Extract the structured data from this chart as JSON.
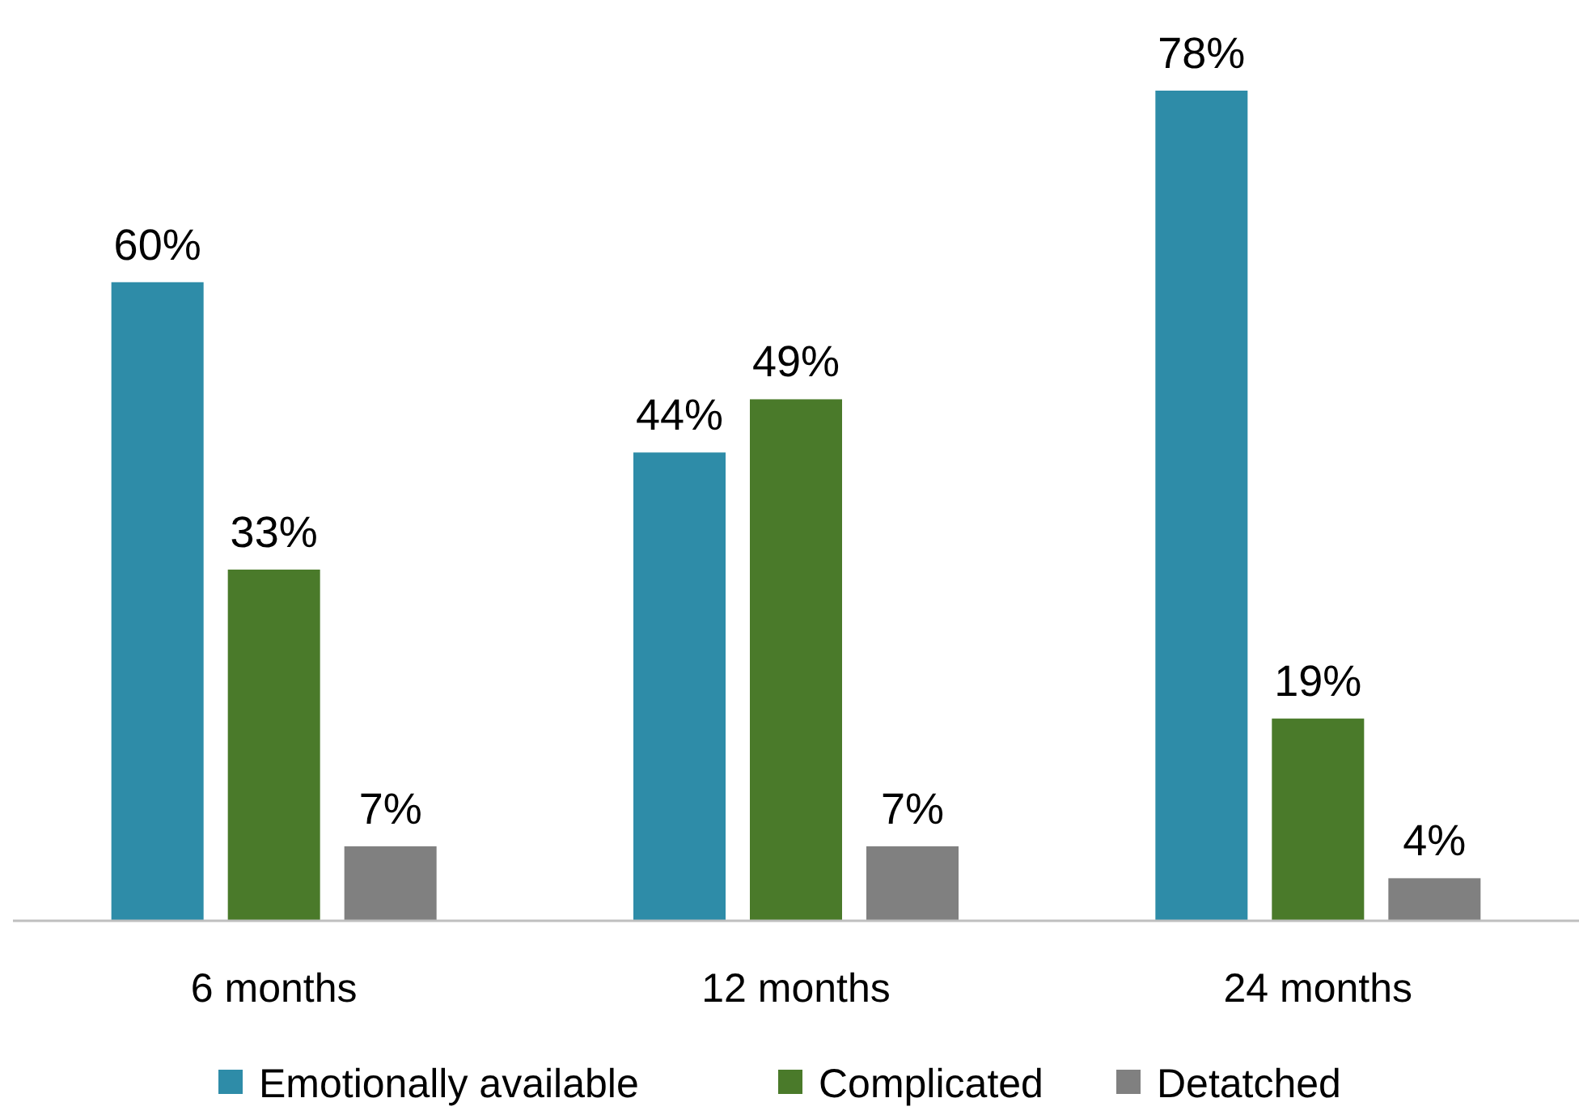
{
  "chart_data": {
    "type": "bar",
    "categories": [
      "6 months",
      "12 months",
      "24 months"
    ],
    "series": [
      {
        "name": "Emotionally available",
        "color": "#2e8ca8",
        "values": [
          60,
          44,
          78
        ],
        "value_labels": [
          "60%",
          "44%",
          "78%"
        ]
      },
      {
        "name": "Complicated",
        "color": "#4a7a2a",
        "values": [
          33,
          49,
          19
        ],
        "value_labels": [
          "33%",
          "49%",
          "19%"
        ]
      },
      {
        "name": "Detatched",
        "color": "#808080",
        "values": [
          7,
          7,
          4
        ],
        "value_labels": [
          "7%",
          "7%",
          "4%"
        ]
      }
    ],
    "legend": "bottom"
  }
}
